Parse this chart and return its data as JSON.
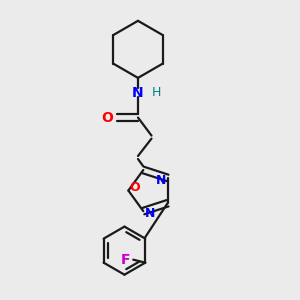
{
  "background_color": "#ebebeb",
  "bond_color": "#1a1a1a",
  "N_color": "#0000ff",
  "O_color": "#ff0000",
  "F_color": "#cc00cc",
  "H_color": "#008080",
  "line_width": 1.6,
  "figsize": [
    3.0,
    3.0
  ],
  "dpi": 100,
  "xlim": [
    0.1,
    0.9
  ],
  "ylim": [
    0.02,
    1.0
  ]
}
